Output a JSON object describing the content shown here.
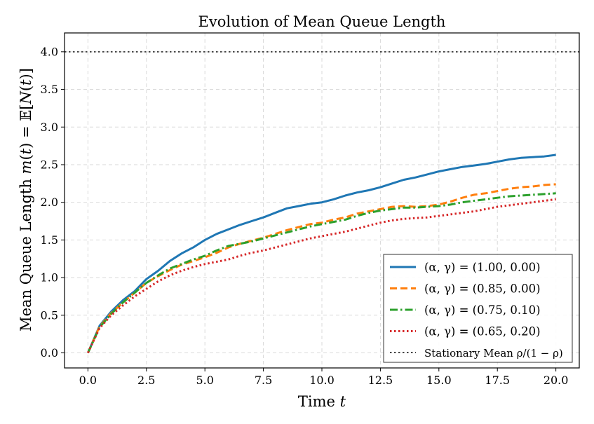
{
  "chart_data": {
    "type": "line",
    "title": "Evolution of Mean Queue Length",
    "xlabel": "Time t",
    "ylabel": "Mean Queue Length m(t) = 𝔼[N(t)]",
    "xlim": [
      -1.0,
      21.0
    ],
    "ylim": [
      -0.2,
      4.25
    ],
    "xticks": [
      0.0,
      2.5,
      5.0,
      7.5,
      10.0,
      12.5,
      15.0,
      17.5,
      20.0
    ],
    "xtick_labels": [
      "0.0",
      "2.5",
      "5.0",
      "7.5",
      "10.0",
      "12.5",
      "15.0",
      "17.5",
      "20.0"
    ],
    "yticks": [
      0.0,
      0.5,
      1.0,
      1.5,
      2.0,
      2.5,
      3.0,
      3.5,
      4.0
    ],
    "ytick_labels": [
      "0.0",
      "0.5",
      "1.0",
      "1.5",
      "2.0",
      "2.5",
      "3.0",
      "3.5",
      "4.0"
    ],
    "grid": true,
    "legend_position": "bottom-right",
    "x": [
      0,
      0.5,
      1,
      1.5,
      2,
      2.5,
      3,
      3.5,
      4,
      4.5,
      5,
      5.5,
      6,
      6.5,
      7,
      7.5,
      8,
      8.5,
      9,
      9.5,
      10,
      10.5,
      11,
      11.5,
      12,
      12.5,
      13,
      13.5,
      14,
      14.5,
      15,
      15.5,
      16,
      16.5,
      17,
      17.5,
      18,
      18.5,
      19,
      19.5,
      20
    ],
    "series": [
      {
        "name": "(α, γ) = (1.00, 0.00)",
        "color": "#1f77b4",
        "style": "solid",
        "values": [
          0,
          0.36,
          0.55,
          0.7,
          0.82,
          0.98,
          1.09,
          1.22,
          1.32,
          1.4,
          1.5,
          1.58,
          1.64,
          1.7,
          1.75,
          1.8,
          1.86,
          1.92,
          1.95,
          1.98,
          2.0,
          2.04,
          2.09,
          2.13,
          2.16,
          2.2,
          2.25,
          2.3,
          2.33,
          2.37,
          2.41,
          2.44,
          2.47,
          2.49,
          2.51,
          2.54,
          2.57,
          2.59,
          2.6,
          2.61,
          2.63
        ]
      },
      {
        "name": "(α, γ) = (0.85, 0.00)",
        "color": "#ff7f0e",
        "style": "dashed",
        "values": [
          0,
          0.35,
          0.53,
          0.67,
          0.8,
          0.93,
          1.02,
          1.1,
          1.17,
          1.22,
          1.27,
          1.33,
          1.4,
          1.45,
          1.49,
          1.53,
          1.58,
          1.63,
          1.67,
          1.71,
          1.73,
          1.77,
          1.8,
          1.85,
          1.88,
          1.91,
          1.94,
          1.95,
          1.94,
          1.95,
          1.97,
          2.01,
          2.06,
          2.1,
          2.12,
          2.15,
          2.18,
          2.2,
          2.21,
          2.23,
          2.24
        ]
      },
      {
        "name": "(α, γ) = (0.75, 0.10)",
        "color": "#2ca02c",
        "style": "dashdot",
        "values": [
          0,
          0.34,
          0.52,
          0.67,
          0.8,
          0.93,
          1.03,
          1.12,
          1.18,
          1.24,
          1.29,
          1.36,
          1.42,
          1.45,
          1.48,
          1.52,
          1.56,
          1.6,
          1.64,
          1.68,
          1.71,
          1.74,
          1.77,
          1.82,
          1.86,
          1.89,
          1.91,
          1.93,
          1.93,
          1.94,
          1.95,
          1.97,
          2.0,
          2.02,
          2.04,
          2.06,
          2.08,
          2.09,
          2.1,
          2.11,
          2.12
        ]
      },
      {
        "name": "(α, γ) = (0.65, 0.20)",
        "color": "#d62728",
        "style": "dotted",
        "values": [
          0,
          0.33,
          0.5,
          0.63,
          0.75,
          0.85,
          0.95,
          1.03,
          1.09,
          1.14,
          1.18,
          1.21,
          1.24,
          1.29,
          1.33,
          1.36,
          1.4,
          1.44,
          1.48,
          1.52,
          1.55,
          1.58,
          1.61,
          1.65,
          1.69,
          1.73,
          1.76,
          1.78,
          1.79,
          1.8,
          1.82,
          1.84,
          1.86,
          1.88,
          1.91,
          1.94,
          1.96,
          1.98,
          2.0,
          2.02,
          2.04
        ]
      }
    ],
    "reference_line": {
      "name": "Stationary Mean ρ/(1 − ρ)",
      "y": 4.0,
      "color": "#444444",
      "style": "dotted"
    }
  }
}
